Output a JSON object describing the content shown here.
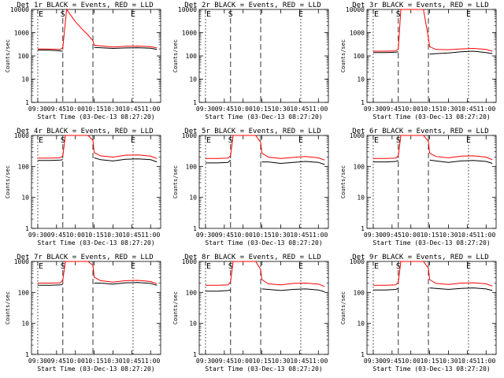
{
  "chart_data": [
    {
      "type": "line",
      "title": "Det 1r BLACK = Events, RED = LLD",
      "xlabel": "Start Time (03-Dec-13 08:27:20)",
      "ylabel": "Counts/sec",
      "x_tick_labels": [
        "09:30",
        "09:45",
        "10:00",
        "10:15",
        "10:30",
        "10:45",
        "11:00"
      ],
      "y_tick_labels": [
        "1",
        "10",
        "100",
        "1000",
        "10000"
      ],
      "ylim": [
        1,
        10000
      ],
      "y_scale": "log",
      "colors": {
        "events": "#000000",
        "lld": "#ff0000"
      },
      "markers": [
        {
          "label": "E",
          "x": "09:30",
          "style": "dotted"
        },
        {
          "label": "S",
          "x": "09:50",
          "style": "dashed"
        },
        {
          "label": "",
          "x": "10:14",
          "style": "dashed"
        },
        {
          "label": "E",
          "x": "10:46",
          "style": "dotted"
        }
      ],
      "series": [
        {
          "x": [
            "09:30",
            "09:40",
            "09:48",
            "09:50",
            "09:55",
            "10:00",
            "10:05",
            "10:10",
            "10:14",
            "10:15",
            "10:20",
            "10:30",
            "10:40",
            "10:50",
            "11:00",
            "11:05"
          ],
          "values": [
            180,
            175,
            165,
            160,
            null,
            null,
            null,
            null,
            null,
            230,
            225,
            210,
            220,
            225,
            215,
            190
          ]
        },
        {
          "x": [
            "09:30",
            "09:40",
            "09:48",
            "09:50",
            "09:53",
            "10:00",
            "10:05",
            "10:10",
            "10:14",
            "10:15",
            "10:20",
            "10:30",
            "10:40",
            "10:50",
            "11:00",
            "11:05"
          ],
          "values": [
            200,
            195,
            190,
            230,
            10000,
            3000,
            1500,
            800,
            450,
            290,
            270,
            240,
            260,
            265,
            250,
            220
          ]
        }
      ]
    },
    {
      "type": "line",
      "title": "Det 2r BLACK = Events, RED = LLD",
      "xlabel": "Start Time (03-Dec-13 08:27:20)",
      "ylabel": "Counts/sec",
      "x_tick_labels": [
        "09:30",
        "09:45",
        "10:00",
        "10:15",
        "10:30",
        "10:45",
        "11:00"
      ],
      "y_tick_labels": [
        "1",
        "10",
        "100",
        "1000",
        "10000"
      ],
      "ylim": [
        1,
        10000
      ],
      "y_scale": "log",
      "colors": {
        "events": "#000000",
        "lld": "#ff0000"
      },
      "markers": [
        {
          "label": "E",
          "x": "09:30",
          "style": "dotted"
        },
        {
          "label": "S",
          "x": "09:50",
          "style": "dashed"
        },
        {
          "label": "",
          "x": "10:14",
          "style": "dashed"
        },
        {
          "label": "E",
          "x": "10:46",
          "style": "dotted"
        }
      ],
      "series": [
        {
          "x": [],
          "values": []
        },
        {
          "x": [],
          "values": []
        }
      ]
    },
    {
      "type": "line",
      "title": "Det 3r BLACK = Events, RED = LLD",
      "xlabel": "Start Time (03-Dec-13 08:27:20)",
      "ylabel": "Counts/sec",
      "x_tick_labels": [
        "09:30",
        "09:45",
        "10:00",
        "10:15",
        "10:30",
        "10:45",
        "11:00"
      ],
      "y_tick_labels": [
        "1",
        "10",
        "100",
        "1000",
        "10000"
      ],
      "ylim": [
        1,
        10000
      ],
      "y_scale": "log",
      "colors": {
        "events": "#000000",
        "lld": "#ff0000"
      },
      "markers": [
        {
          "label": "E",
          "x": "09:30",
          "style": "dotted"
        },
        {
          "label": "S",
          "x": "09:50",
          "style": "dashed"
        },
        {
          "label": "",
          "x": "10:14",
          "style": "dashed"
        },
        {
          "label": "E",
          "x": "10:46",
          "style": "dotted"
        }
      ],
      "series": [
        {
          "x": [
            "09:30",
            "09:40",
            "09:48",
            "09:50",
            "10:14",
            "10:15",
            "10:20",
            "10:30",
            "10:40",
            "10:50",
            "11:00",
            "11:05"
          ],
          "values": [
            140,
            140,
            145,
            150,
            null,
            120,
            125,
            135,
            150,
            160,
            140,
            125
          ]
        },
        {
          "x": [
            "09:30",
            "09:40",
            "09:48",
            "09:50",
            "09:52",
            "10:00",
            "10:10",
            "10:14",
            "10:15",
            "10:20",
            "10:30",
            "10:40",
            "10:50",
            "11:00",
            "11:05"
          ],
          "values": [
            160,
            160,
            165,
            200,
            10000,
            10000,
            10000,
            600,
            250,
            190,
            185,
            200,
            210,
            190,
            160
          ]
        }
      ]
    },
    {
      "type": "line",
      "title": "Det 4r BLACK = Events, RED = LLD",
      "xlabel": "Start Time (03-Dec-13 08:27:20)",
      "ylabel": "Counts/sec",
      "x_tick_labels": [
        "09:30",
        "09:45",
        "10:00",
        "10:15",
        "10:30",
        "10:45",
        "11:00"
      ],
      "y_tick_labels": [
        "1",
        "10",
        "100",
        "1000"
      ],
      "ylim": [
        1,
        1000
      ],
      "y_scale": "log",
      "colors": {
        "events": "#000000",
        "lld": "#ff0000"
      },
      "markers": [
        {
          "label": "E",
          "x": "09:30",
          "style": "dotted"
        },
        {
          "label": "S",
          "x": "09:50",
          "style": "dashed"
        },
        {
          "label": "",
          "x": "10:14",
          "style": "dashed"
        },
        {
          "label": "E",
          "x": "10:46",
          "style": "dotted"
        }
      ],
      "series": [
        {
          "x": [
            "09:30",
            "09:40",
            "09:48",
            "09:50",
            "10:14",
            "10:15",
            "10:20",
            "10:30",
            "10:40",
            "10:50",
            "11:00",
            "11:05"
          ],
          "values": [
            155,
            155,
            160,
            165,
            null,
            190,
            165,
            150,
            170,
            175,
            165,
            140
          ]
        },
        {
          "x": [
            "09:30",
            "09:40",
            "09:48",
            "09:50",
            "09:52",
            "10:00",
            "10:10",
            "10:14",
            "10:15",
            "10:20",
            "10:30",
            "10:40",
            "10:50",
            "11:00",
            "11:05"
          ],
          "values": [
            185,
            185,
            190,
            220,
            1000,
            1000,
            1000,
            700,
            280,
            220,
            200,
            230,
            235,
            215,
            180
          ]
        }
      ]
    },
    {
      "type": "line",
      "title": "Det 5r BLACK = Events, RED = LLD",
      "xlabel": "Start Time (03-Dec-13 08:27:20)",
      "ylabel": "Counts/sec",
      "x_tick_labels": [
        "09:30",
        "09:45",
        "10:00",
        "10:15",
        "10:30",
        "10:45",
        "11:00"
      ],
      "y_tick_labels": [
        "1",
        "10",
        "100",
        "1000"
      ],
      "ylim": [
        1,
        1000
      ],
      "y_scale": "log",
      "colors": {
        "events": "#000000",
        "lld": "#ff0000"
      },
      "markers": [
        {
          "label": "E",
          "x": "09:30",
          "style": "dotted"
        },
        {
          "label": "S",
          "x": "09:50",
          "style": "dashed"
        },
        {
          "label": "",
          "x": "10:14",
          "style": "dashed"
        },
        {
          "label": "E",
          "x": "10:46",
          "style": "dotted"
        }
      ],
      "series": [
        {
          "x": [
            "09:30",
            "09:40",
            "09:48",
            "09:50",
            "10:14",
            "10:15",
            "10:20",
            "10:30",
            "10:40",
            "10:50",
            "11:00",
            "11:05"
          ],
          "values": [
            130,
            130,
            135,
            160,
            null,
            140,
            140,
            125,
            135,
            145,
            135,
            115
          ]
        },
        {
          "x": [
            "09:30",
            "09:40",
            "09:48",
            "09:50",
            "09:52",
            "10:00",
            "10:10",
            "10:14",
            "10:15",
            "10:20",
            "10:30",
            "10:40",
            "10:50",
            "11:00",
            "11:05"
          ],
          "values": [
            180,
            180,
            185,
            220,
            1000,
            1000,
            1000,
            600,
            270,
            200,
            180,
            195,
            210,
            190,
            160
          ]
        }
      ]
    },
    {
      "type": "line",
      "title": "Det 6r BLACK = Events, RED = LLD",
      "xlabel": "Start Time (03-Dec-13 08:27:20)",
      "ylabel": "Counts/sec",
      "x_tick_labels": [
        "09:30",
        "09:45",
        "10:00",
        "10:15",
        "10:30",
        "10:45",
        "11:00"
      ],
      "y_tick_labels": [
        "1",
        "10",
        "100",
        "1000"
      ],
      "ylim": [
        1,
        1000
      ],
      "y_scale": "log",
      "colors": {
        "events": "#000000",
        "lld": "#ff0000"
      },
      "markers": [
        {
          "label": "E",
          "x": "09:30",
          "style": "dotted"
        },
        {
          "label": "S",
          "x": "09:50",
          "style": "dashed"
        },
        {
          "label": "",
          "x": "10:14",
          "style": "dashed"
        },
        {
          "label": "E",
          "x": "10:46",
          "style": "dotted"
        }
      ],
      "series": [
        {
          "x": [
            "09:30",
            "09:40",
            "09:48",
            "09:50",
            "10:14",
            "10:15",
            "10:20",
            "10:30",
            "10:40",
            "10:50",
            "11:00",
            "11:05"
          ],
          "values": [
            140,
            140,
            145,
            155,
            null,
            160,
            150,
            135,
            150,
            155,
            145,
            125
          ]
        },
        {
          "x": [
            "09:30",
            "09:40",
            "09:48",
            "09:50",
            "09:52",
            "10:00",
            "10:10",
            "10:14",
            "10:15",
            "10:20",
            "10:30",
            "10:40",
            "10:50",
            "11:00",
            "11:05"
          ],
          "values": [
            180,
            180,
            185,
            220,
            1000,
            1000,
            1000,
            650,
            270,
            210,
            190,
            215,
            220,
            200,
            165
          ]
        }
      ]
    },
    {
      "type": "line",
      "title": "Det 7r BLACK = Events, RED = LLD",
      "xlabel": "Start Time (03-Dec-13 08:27:20)",
      "ylabel": "Counts/sec",
      "x_tick_labels": [
        "09:30",
        "09:45",
        "10:00",
        "10:15",
        "10:30",
        "10:45",
        "11:00"
      ],
      "y_tick_labels": [
        "1",
        "10",
        "100",
        "1000"
      ],
      "ylim": [
        1,
        1000
      ],
      "y_scale": "log",
      "colors": {
        "events": "#000000",
        "lld": "#ff0000"
      },
      "markers": [
        {
          "label": "E",
          "x": "09:30",
          "style": "dotted"
        },
        {
          "label": "S",
          "x": "09:50",
          "style": "dashed"
        },
        {
          "label": "",
          "x": "10:14",
          "style": "dashed"
        },
        {
          "label": "E",
          "x": "10:46",
          "style": "dotted"
        }
      ],
      "series": [
        {
          "x": [
            "09:30",
            "09:40",
            "09:48",
            "09:50",
            "10:14",
            "10:15",
            "10:20",
            "10:30",
            "10:40",
            "10:50",
            "11:00",
            "11:05"
          ],
          "values": [
            170,
            170,
            175,
            185,
            null,
            200,
            200,
            185,
            205,
            210,
            195,
            170
          ]
        },
        {
          "x": [
            "09:30",
            "09:40",
            "09:48",
            "09:50",
            "09:52",
            "10:00",
            "10:10",
            "10:14",
            "10:15",
            "10:20",
            "10:30",
            "10:40",
            "10:50",
            "11:00",
            "11:05"
          ],
          "values": [
            200,
            200,
            205,
            250,
            1000,
            1000,
            1000,
            750,
            310,
            240,
            215,
            240,
            245,
            225,
            190
          ]
        }
      ]
    },
    {
      "type": "line",
      "title": "Det 8r BLACK = Events, RED = LLD",
      "xlabel": "Start Time (03-Dec-13 08:27:20)",
      "ylabel": "Counts/sec",
      "x_tick_labels": [
        "09:30",
        "09:45",
        "10:00",
        "10:15",
        "10:30",
        "10:45",
        "11:00"
      ],
      "y_tick_labels": [
        "1",
        "10",
        "100",
        "1000"
      ],
      "ylim": [
        1,
        1000
      ],
      "y_scale": "log",
      "colors": {
        "events": "#000000",
        "lld": "#ff0000"
      },
      "markers": [
        {
          "label": "E",
          "x": "09:30",
          "style": "dotted"
        },
        {
          "label": "S",
          "x": "09:50",
          "style": "dashed"
        },
        {
          "label": "",
          "x": "10:14",
          "style": "dashed"
        },
        {
          "label": "E",
          "x": "10:46",
          "style": "dotted"
        }
      ],
      "series": [
        {
          "x": [
            "09:30",
            "09:40",
            "09:48",
            "09:50",
            "10:14",
            "10:15",
            "10:20",
            "10:30",
            "10:40",
            "10:50",
            "11:00",
            "11:05"
          ],
          "values": [
            110,
            110,
            115,
            120,
            null,
            130,
            125,
            115,
            125,
            130,
            120,
            105
          ]
        },
        {
          "x": [
            "09:30",
            "09:40",
            "09:48",
            "09:50",
            "09:52",
            "10:00",
            "10:10",
            "10:14",
            "10:15",
            "10:20",
            "10:30",
            "10:40",
            "10:50",
            "11:00",
            "11:05"
          ],
          "values": [
            170,
            170,
            175,
            220,
            1000,
            1000,
            1000,
            550,
            260,
            190,
            175,
            195,
            200,
            185,
            155
          ]
        }
      ]
    },
    {
      "type": "line",
      "title": "Det 9r BLACK = Events, RED = LLD",
      "xlabel": "Start Time (03-Dec-13 08:27:20)",
      "ylabel": "Counts/sec",
      "x_tick_labels": [
        "09:30",
        "09:45",
        "10:00",
        "10:15",
        "10:30",
        "10:45",
        "11:00"
      ],
      "y_tick_labels": [
        "1",
        "10",
        "100",
        "1000"
      ],
      "ylim": [
        1,
        1000
      ],
      "y_scale": "log",
      "colors": {
        "events": "#000000",
        "lld": "#ff0000"
      },
      "markers": [
        {
          "label": "E",
          "x": "09:30",
          "style": "dotted"
        },
        {
          "label": "S",
          "x": "09:50",
          "style": "dashed"
        },
        {
          "label": "",
          "x": "10:14",
          "style": "dashed"
        },
        {
          "label": "E",
          "x": "10:46",
          "style": "dotted"
        }
      ],
      "series": [
        {
          "x": [
            "09:30",
            "09:40",
            "09:48",
            "09:50",
            "10:14",
            "10:15",
            "10:20",
            "10:30",
            "10:40",
            "10:50",
            "11:00",
            "11:05"
          ],
          "values": [
            120,
            120,
            125,
            135,
            null,
            140,
            135,
            125,
            135,
            140,
            130,
            115
          ]
        },
        {
          "x": [
            "09:30",
            "09:40",
            "09:48",
            "09:50",
            "09:52",
            "10:00",
            "10:10",
            "10:14",
            "10:15",
            "10:20",
            "10:30",
            "10:40",
            "10:50",
            "11:00",
            "11:05"
          ],
          "values": [
            170,
            170,
            175,
            215,
            1000,
            1000,
            1000,
            600,
            260,
            195,
            180,
            200,
            205,
            190,
            160
          ]
        }
      ]
    }
  ]
}
